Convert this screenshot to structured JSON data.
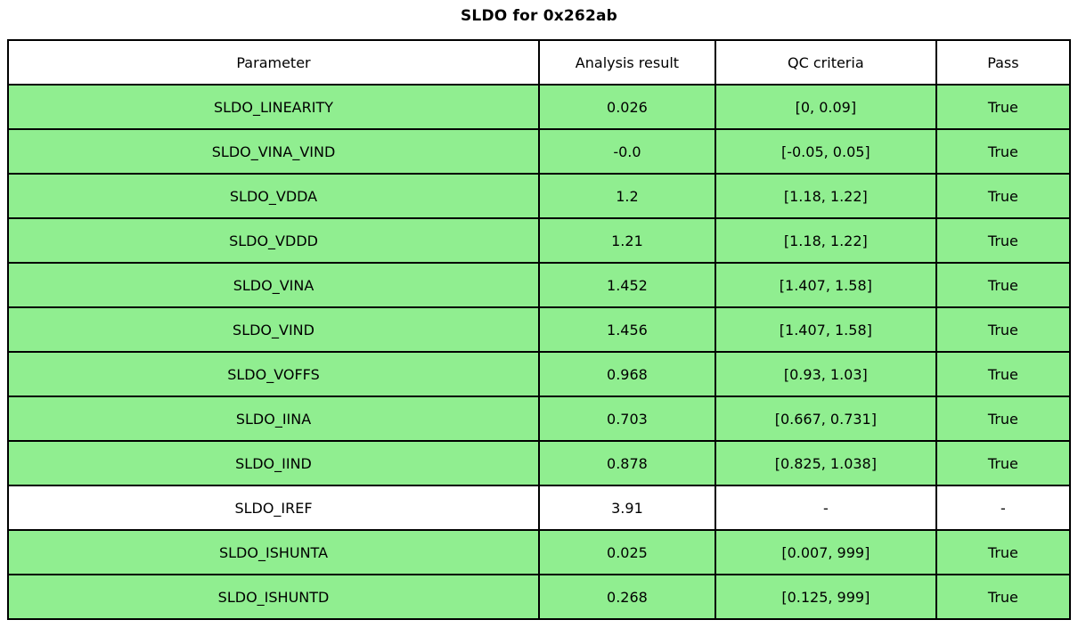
{
  "title": "SLDO for 0x262ab",
  "colors": {
    "pass_row": "#90ee90",
    "neutral_row": "#ffffff",
    "border": "#000000",
    "text": "#000000"
  },
  "chart_data": {
    "type": "table",
    "title": "SLDO for 0x262ab",
    "columns": [
      "Parameter",
      "Analysis result",
      "QC criteria",
      "Pass"
    ],
    "rows": [
      {
        "parameter": "SLDO_LINEARITY",
        "result": "0.026",
        "criteria": "[0, 0.09]",
        "pass": "True",
        "highlight": true
      },
      {
        "parameter": "SLDO_VINA_VIND",
        "result": "-0.0",
        "criteria": "[-0.05, 0.05]",
        "pass": "True",
        "highlight": true
      },
      {
        "parameter": "SLDO_VDDA",
        "result": "1.2",
        "criteria": "[1.18, 1.22]",
        "pass": "True",
        "highlight": true
      },
      {
        "parameter": "SLDO_VDDD",
        "result": "1.21",
        "criteria": "[1.18, 1.22]",
        "pass": "True",
        "highlight": true
      },
      {
        "parameter": "SLDO_VINA",
        "result": "1.452",
        "criteria": "[1.407, 1.58]",
        "pass": "True",
        "highlight": true
      },
      {
        "parameter": "SLDO_VIND",
        "result": "1.456",
        "criteria": "[1.407, 1.58]",
        "pass": "True",
        "highlight": true
      },
      {
        "parameter": "SLDO_VOFFS",
        "result": "0.968",
        "criteria": "[0.93, 1.03]",
        "pass": "True",
        "highlight": true
      },
      {
        "parameter": "SLDO_IINA",
        "result": "0.703",
        "criteria": "[0.667, 0.731]",
        "pass": "True",
        "highlight": true
      },
      {
        "parameter": "SLDO_IIND",
        "result": "0.878",
        "criteria": "[0.825, 1.038]",
        "pass": "True",
        "highlight": true
      },
      {
        "parameter": "SLDO_IREF",
        "result": "3.91",
        "criteria": "-",
        "pass": "-",
        "highlight": false
      },
      {
        "parameter": "SLDO_ISHUNTA",
        "result": "0.025",
        "criteria": "[0.007, 999]",
        "pass": "True",
        "highlight": true
      },
      {
        "parameter": "SLDO_ISHUNTD",
        "result": "0.268",
        "criteria": "[0.125, 999]",
        "pass": "True",
        "highlight": true
      }
    ]
  }
}
